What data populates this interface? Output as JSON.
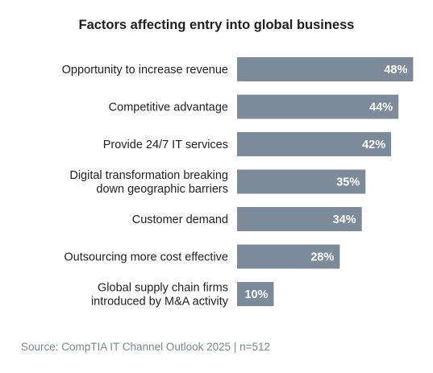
{
  "chart_data": {
    "type": "bar",
    "orientation": "horizontal",
    "title": "Factors affecting entry into global business",
    "categories": [
      [
        "Opportunity to increase revenue"
      ],
      [
        "Competitive advantage"
      ],
      [
        "Provide 24/7 IT services"
      ],
      [
        "Digital transformation breaking",
        "down geographic barriers"
      ],
      [
        "Customer demand"
      ],
      [
        "Outsourcing more cost effective"
      ],
      [
        "Global supply chain firms",
        "introduced by M&A activity"
      ]
    ],
    "values": [
      48,
      44,
      42,
      35,
      34,
      28,
      10
    ],
    "value_labels": [
      "48%",
      "44%",
      "42%",
      "35%",
      "34%",
      "28%",
      "10%"
    ],
    "bar_color": "#7c8a99",
    "grid": false,
    "legend": "none"
  },
  "source": "Source: CompTIA IT Channel Outlook 2025 | n=512"
}
